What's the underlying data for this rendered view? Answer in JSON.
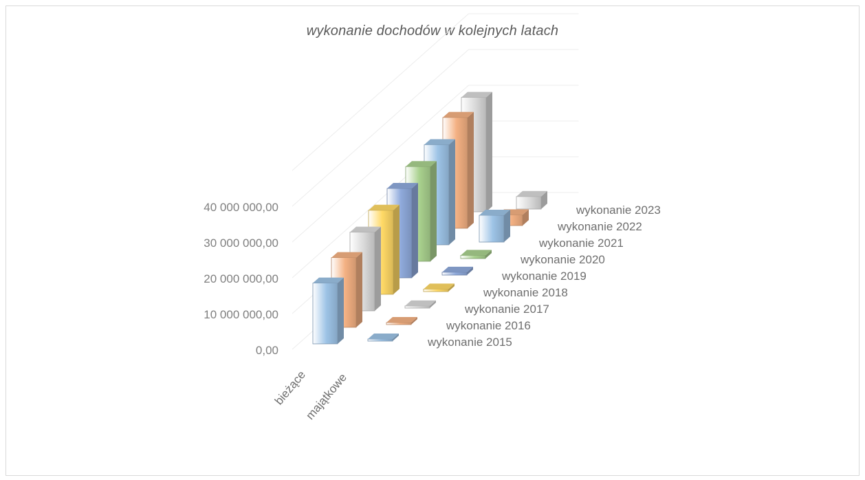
{
  "chart_data": {
    "type": "bar",
    "title": "wykonanie   dochodów  w kolejnych   latach",
    "categories": [
      "bieżące",
      "majątkowe"
    ],
    "y_ticks": [
      "0,00",
      "10 000 000,00",
      "20 000 000,00",
      "30 000 000,00",
      "40 000 000,00"
    ],
    "ylim": [
      0,
      40000000
    ],
    "grid": true,
    "legend_position": "right (series labels along depth axis)",
    "series": [
      {
        "name": "wykonanie 2015",
        "values": [
          17000000,
          200000
        ],
        "color": "#9dc3e6"
      },
      {
        "name": "wykonanie 2016",
        "values": [
          19500000,
          500000
        ],
        "color": "#f4b183"
      },
      {
        "name": "wykonanie 2017",
        "values": [
          22000000,
          600000
        ],
        "color": "#d9d9d9"
      },
      {
        "name": "wykonanie 2018",
        "values": [
          23500000,
          700000
        ],
        "color": "#ffd966"
      },
      {
        "name": "wykonanie 2019",
        "values": [
          25000000,
          800000
        ],
        "color": "#8faadc"
      },
      {
        "name": "wykonanie 2020",
        "values": [
          26500000,
          900000
        ],
        "color": "#a9d18e"
      },
      {
        "name": "wykonanie 2021",
        "values": [
          28000000,
          7500000
        ],
        "color": "#9dc3e6"
      },
      {
        "name": "wykonanie 2022",
        "values": [
          31000000,
          3000000
        ],
        "color": "#f4b183"
      },
      {
        "name": "wykonanie 2023",
        "values": [
          32000000,
          3500000
        ],
        "color": "#d9d9d9"
      }
    ]
  }
}
